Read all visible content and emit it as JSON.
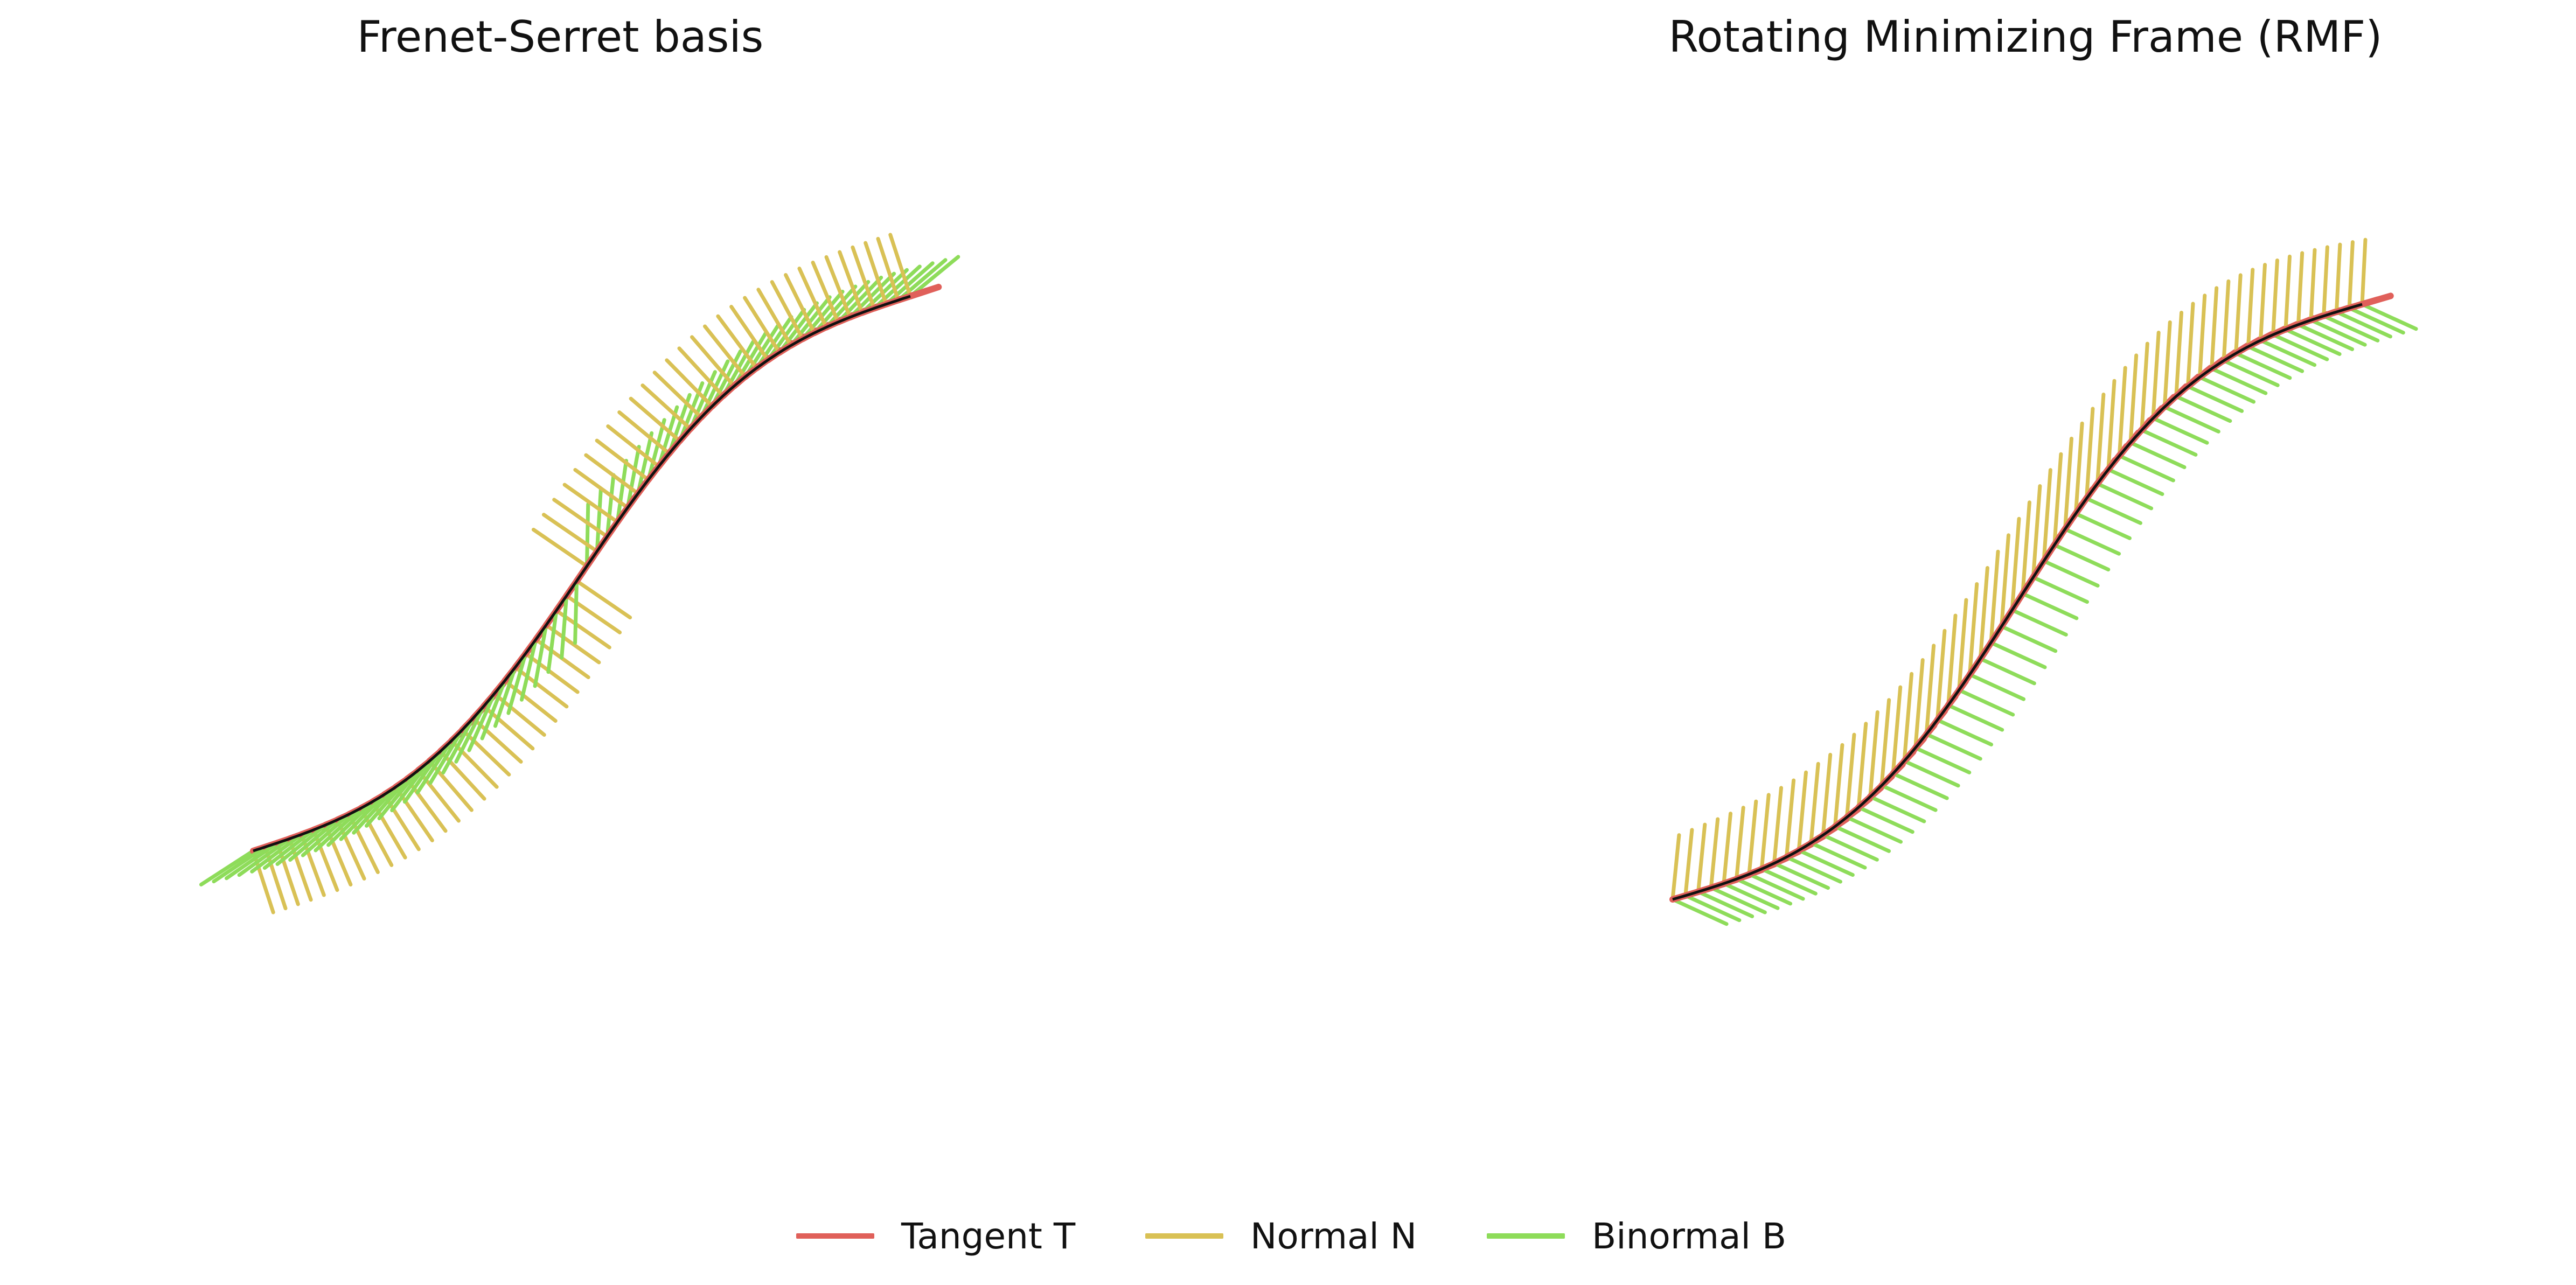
{
  "panels": [
    {
      "title": "Frenet-Serret basis",
      "frame": "frenet"
    },
    {
      "title": "Rotating Minimizing Frame (RMF)",
      "frame": "rmf"
    }
  ],
  "legend": {
    "items": [
      {
        "label": "Tangent T",
        "color": "#e0605a"
      },
      {
        "label": "Normal N",
        "color": "#d9c155"
      },
      {
        "label": "Binormal B",
        "color": "#8edc5a"
      }
    ]
  },
  "curve": {
    "color": "#111111",
    "samples": 60
  }
}
